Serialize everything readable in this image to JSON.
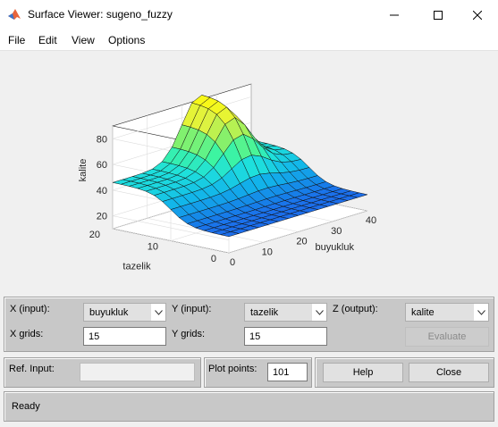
{
  "window": {
    "title": "Surface Viewer: sugeno_fuzzy",
    "app_icon": "matlab-icon"
  },
  "menu": [
    "File",
    "Edit",
    "View",
    "Options"
  ],
  "chart_data": {
    "type": "surface",
    "xlabel": "buyukluk",
    "ylabel": "tazelik",
    "zlabel": "kalite",
    "x_ticks": [
      "0",
      "10",
      "20",
      "30",
      "40"
    ],
    "y_ticks": [
      "0",
      "10",
      "20"
    ],
    "z_ticks": [
      "20",
      "40",
      "60",
      "80"
    ],
    "xlim": [
      0,
      40
    ],
    "ylim": [
      0,
      20
    ],
    "zlim": [
      10,
      90
    ],
    "colormap": [
      "#2a3ff2",
      "#1680e8",
      "#12b5ea",
      "#1ee0dc",
      "#3ef5a0",
      "#8ef066",
      "#dff240",
      "#f8f818"
    ],
    "x_grid": 15,
    "y_grid": 15,
    "surface_description": "low plateau ~15 at low buyukluk and low tazelik; ramps to ~45 with rising tazelik; peak ~90 at high tazelik and mid-high buyukluk; ~45 at high buyukluk"
  },
  "controls": {
    "x_input_label": "X (input):",
    "x_input_value": "buyukluk",
    "y_input_label": "Y (input):",
    "y_input_value": "tazelik",
    "z_output_label": "Z (output):",
    "z_output_value": "kalite",
    "x_grids_label": "X grids:",
    "x_grids_value": "15",
    "y_grids_label": "Y grids:",
    "y_grids_value": "15",
    "evaluate_label": "Evaluate",
    "ref_input_label": "Ref. Input:",
    "ref_input_value": "",
    "plot_points_label": "Plot points:",
    "plot_points_value": "101",
    "help_label": "Help",
    "close_label": "Close"
  },
  "status": {
    "text": "Ready"
  }
}
